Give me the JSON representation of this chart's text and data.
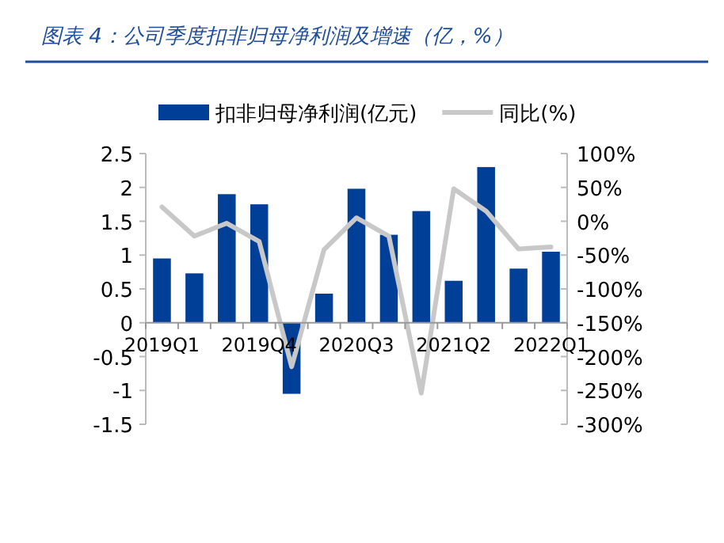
{
  "chart_data": {
    "type": "bar",
    "title": "图表 4：公司季度扣非归母净利润及增速（亿，%）",
    "categories": [
      "2019Q1",
      null,
      null,
      "2019Q4",
      null,
      null,
      "2020Q3",
      null,
      null,
      "2021Q2",
      null,
      null,
      "2022Q1"
    ],
    "series": [
      {
        "name": "扣非归母净利润(亿元)",
        "color": "#003f98",
        "values": [
          0.95,
          0.73,
          1.9,
          1.75,
          -1.05,
          0.43,
          1.98,
          1.3,
          1.65,
          0.62,
          2.3,
          0.8,
          1.05
        ]
      },
      {
        "name": "同比(%)",
        "type": "line",
        "axis": "y2",
        "color": "#c8c8c8",
        "values": [
          21,
          -22,
          -3,
          -30,
          -215,
          -42,
          5,
          -22,
          -254,
          48,
          15,
          -41,
          -38
        ]
      }
    ],
    "ylim": [
      -1.5,
      2.5
    ],
    "yticks": [
      2.5,
      2,
      1.5,
      1,
      0.5,
      0,
      -0.5,
      -1,
      -1.5
    ],
    "y2lim": [
      -300,
      100
    ],
    "y2ticks": [
      {
        "value": 100,
        "label": "100%"
      },
      {
        "value": 50,
        "label": "50%"
      },
      {
        "value": 0,
        "label": "0%"
      },
      {
        "value": -50,
        "label": "-50%"
      },
      {
        "value": -100,
        "label": "-100%"
      },
      {
        "value": -150,
        "label": "-150%"
      },
      {
        "value": -200,
        "label": "-200%"
      },
      {
        "value": -250,
        "label": "-250%"
      },
      {
        "value": -300,
        "label": "-300%"
      }
    ],
    "legend": "top"
  }
}
